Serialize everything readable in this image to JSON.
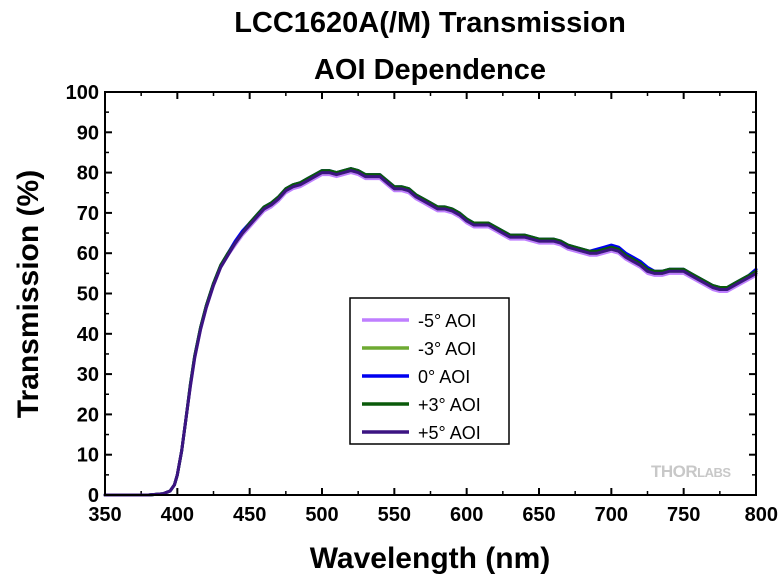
{
  "chart_data": {
    "type": "line",
    "title": "LCC1620A(/M) Transmission",
    "subtitle": "AOI Dependence",
    "xlabel": "Wavelength (nm)",
    "ylabel": "Transmission (%)",
    "xlim": [
      350,
      800
    ],
    "ylim": [
      0,
      100
    ],
    "xticks": [
      350,
      400,
      450,
      500,
      550,
      600,
      650,
      700,
      750,
      800
    ],
    "yticks": [
      0,
      10,
      20,
      30,
      40,
      50,
      60,
      70,
      80,
      90,
      100
    ],
    "grid": false,
    "legend_position": "center",
    "x": [
      350,
      380,
      390,
      395,
      398,
      400,
      403,
      406,
      409,
      412,
      416,
      420,
      425,
      430,
      435,
      440,
      445,
      450,
      455,
      460,
      465,
      470,
      475,
      480,
      485,
      490,
      495,
      500,
      505,
      510,
      515,
      520,
      525,
      530,
      535,
      540,
      545,
      550,
      555,
      560,
      565,
      570,
      575,
      580,
      585,
      590,
      595,
      600,
      605,
      610,
      615,
      620,
      625,
      630,
      635,
      640,
      645,
      650,
      655,
      660,
      665,
      670,
      675,
      680,
      685,
      690,
      695,
      700,
      705,
      710,
      715,
      720,
      725,
      730,
      735,
      740,
      745,
      750,
      755,
      760,
      765,
      770,
      775,
      780,
      785,
      790,
      795,
      800
    ],
    "series": [
      {
        "name": "-5° AOI",
        "color": "#bf7fff",
        "values": [
          0,
          0,
          0.3,
          1,
          2.5,
          5,
          11,
          19,
          27,
          34,
          41,
          46.5,
          52,
          56.5,
          59.5,
          62,
          64.5,
          66.5,
          68.5,
          70.5,
          71.5,
          73,
          75,
          76,
          76.5,
          77.5,
          78.5,
          79.5,
          79.5,
          79,
          79.5,
          80,
          79.5,
          78.5,
          78.5,
          78.5,
          77,
          75.5,
          75.5,
          75,
          73.5,
          72.5,
          71.5,
          70.5,
          70.5,
          70,
          69,
          67.5,
          66.5,
          66.5,
          66.5,
          65.5,
          64.5,
          63.5,
          63.5,
          63.5,
          63,
          62.5,
          62.5,
          62.5,
          62,
          61,
          60.5,
          60,
          59.5,
          59.5,
          60,
          60.5,
          60,
          58.5,
          57.5,
          56.5,
          55,
          54.5,
          54.5,
          55,
          55,
          55,
          54,
          53,
          52,
          51,
          50.5,
          50.5,
          51.5,
          52.5,
          53.5,
          54.5
        ]
      },
      {
        "name": "-3° AOI",
        "color": "#6eaa32",
        "values": [
          0,
          0,
          0.3,
          1,
          2.5,
          5,
          11,
          19,
          27.5,
          34.5,
          41.5,
          47,
          52.5,
          57,
          60,
          62.5,
          65,
          67,
          69,
          71,
          72,
          73.5,
          75.5,
          76.5,
          77,
          78,
          79,
          80,
          80,
          79.5,
          80,
          80.5,
          80,
          79,
          79,
          79,
          77.5,
          76,
          76,
          75.5,
          74,
          73,
          72,
          71,
          71,
          70.5,
          69.5,
          68,
          67,
          67,
          67,
          66,
          65,
          64,
          64,
          64,
          63.5,
          63,
          63,
          63,
          62.5,
          61.5,
          61,
          60.5,
          60,
          60,
          60.5,
          61,
          60.5,
          59,
          58,
          57,
          55.5,
          55,
          55,
          55.5,
          55.5,
          55.5,
          54.5,
          53.5,
          52.5,
          51.5,
          51,
          51,
          52,
          53,
          54,
          55
        ]
      },
      {
        "name": "0° AOI",
        "color": "#0000f0",
        "values": [
          0,
          0,
          0.3,
          1,
          2.5,
          5,
          11,
          19,
          27.5,
          34.5,
          41.5,
          47,
          52.5,
          57,
          60,
          63,
          65.5,
          67.5,
          69.5,
          71.5,
          72.5,
          74,
          76,
          77,
          77.5,
          78.5,
          79.5,
          80.5,
          80.5,
          80,
          80.5,
          81,
          80.5,
          79.5,
          79.5,
          79.5,
          78,
          76.5,
          76.5,
          76,
          74.5,
          73.5,
          72.5,
          71.5,
          71.5,
          71,
          70,
          68.5,
          67.5,
          67.5,
          67.5,
          66.5,
          65.5,
          64.5,
          64.5,
          64.5,
          64,
          63.5,
          63.5,
          63.5,
          63,
          62,
          61.5,
          61,
          60.5,
          61,
          61.5,
          62,
          61.5,
          60,
          59,
          58,
          56.5,
          55.5,
          55.5,
          56,
          56,
          56,
          55,
          54,
          53,
          52,
          51.5,
          51.5,
          52.5,
          53.5,
          54.5,
          56
        ]
      },
      {
        "name": "+3° AOI",
        "color": "#0a5a0a",
        "values": [
          0,
          0,
          0.3,
          1,
          2.5,
          5,
          11,
          19,
          27.5,
          34.5,
          41.5,
          47,
          52.5,
          57,
          60,
          62.5,
          65,
          67.5,
          69.5,
          71.5,
          72.5,
          74,
          76,
          77,
          77.5,
          78.5,
          79.5,
          80.5,
          80.5,
          80,
          80.5,
          81,
          80.5,
          79.5,
          79.5,
          79.5,
          78,
          76.5,
          76.5,
          76,
          74.5,
          73.5,
          72.5,
          71.5,
          71.5,
          71,
          70,
          68.5,
          67.5,
          67.5,
          67.5,
          66.5,
          65.5,
          64.5,
          64.5,
          64.5,
          64,
          63.5,
          63.5,
          63.5,
          63,
          62,
          61.5,
          61,
          60.5,
          60.5,
          61,
          61.5,
          61,
          59.5,
          58.5,
          57.5,
          56,
          55.5,
          55.5,
          56,
          56,
          56,
          55,
          54,
          53,
          52,
          51.5,
          51.5,
          52.5,
          53.5,
          54.5,
          55.5
        ]
      },
      {
        "name": "+5° AOI",
        "color": "#3c1482",
        "values": [
          0,
          0,
          0.3,
          1,
          2.5,
          5,
          11,
          19,
          27,
          34,
          41,
          46.5,
          52,
          56.5,
          59.5,
          62.5,
          65,
          67,
          69,
          71,
          72,
          73.5,
          75.5,
          76.5,
          77,
          78,
          79,
          80,
          80,
          79.5,
          80,
          80.5,
          80,
          79,
          79,
          79,
          77.5,
          76,
          76,
          75.5,
          74,
          73,
          72,
          71,
          71,
          70.5,
          69.5,
          68,
          67,
          67,
          67,
          66,
          65,
          64,
          64,
          64,
          63.5,
          63,
          63,
          63,
          62.5,
          61.5,
          61,
          60.5,
          60,
          60,
          60.5,
          61,
          60.5,
          59,
          58,
          57,
          55.5,
          55,
          55,
          55.5,
          55.5,
          55.5,
          54.5,
          53.5,
          52.5,
          51.5,
          51,
          51,
          52,
          53,
          54,
          55
        ]
      }
    ]
  },
  "watermark": {
    "left": "THOR",
    "right": "LABS"
  }
}
